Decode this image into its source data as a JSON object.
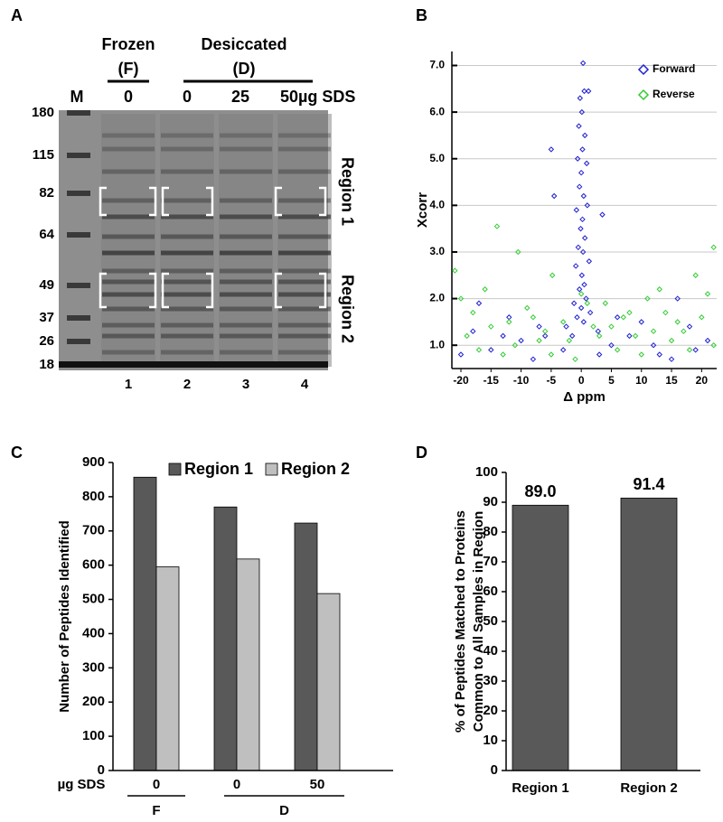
{
  "gel": {
    "panel_label": "A",
    "groups": [
      {
        "label": "Frozen",
        "abbr": "(F)"
      },
      {
        "label": "Desiccated",
        "abbr": "(D)"
      }
    ],
    "column_labels": [
      "M",
      "0",
      "0",
      "25",
      "50µg SDS"
    ],
    "markers": [
      180,
      115,
      82,
      64,
      49,
      37,
      26,
      18
    ],
    "regions": [
      "Region 1",
      "Region 2"
    ],
    "lanes": [
      "1",
      "2",
      "3",
      "4"
    ]
  },
  "chart_data": [
    {
      "type": "scatter",
      "panel_label": "B",
      "xlabel": "Δ ppm",
      "ylabel": "Xcorr",
      "xlim": [
        -21.5,
        22.5
      ],
      "xticks": [
        -20,
        -15,
        -10,
        -5,
        0,
        5,
        10,
        15,
        20
      ],
      "ylim": [
        0.5,
        7.3
      ],
      "yticks": [
        {
          "value": 1.0,
          "label": "1.0"
        },
        {
          "value": 2.0,
          "label": "2.0"
        },
        {
          "value": 3.0,
          "label": "3.0"
        },
        {
          "value": 4.0,
          "label": "4.0"
        },
        {
          "value": 5.0,
          "label": "5.0"
        },
        {
          "value": 6.0,
          "label": "6.0"
        },
        {
          "value": 7.0,
          "label": "7.0"
        }
      ],
      "grid": true,
      "legend": "upper right",
      "series": [
        {
          "name": "Forward",
          "color": "#1f1fd0",
          "x": [
            0.3,
            0.5,
            -0.2,
            1.2,
            0.1,
            -0.4,
            0.6,
            0.2,
            -0.6,
            0.9,
            0.0,
            -0.3,
            0.4,
            1.0,
            -0.8,
            0.2,
            -0.1,
            0.6,
            -0.5,
            0.3,
            1.3,
            -0.9,
            0.1,
            0.5,
            -0.3,
            0.8,
            -1.2,
            0.0,
            1.5,
            -0.7,
            0.4,
            -2.5,
            2.8,
            -5.0,
            -4.5,
            3.5,
            -6,
            -10,
            -15,
            -18,
            -20,
            8,
            12,
            15,
            18,
            21,
            -12,
            10,
            5,
            -8,
            -3,
            3,
            6,
            -17,
            16,
            -13,
            19,
            -7,
            13,
            -1.5
          ],
          "values": [
            7.05,
            6.45,
            6.3,
            6.45,
            6.0,
            5.7,
            5.5,
            5.2,
            5.0,
            4.9,
            4.7,
            4.4,
            4.2,
            4.0,
            3.9,
            3.7,
            3.5,
            3.3,
            3.1,
            3.0,
            2.8,
            2.7,
            2.5,
            2.3,
            2.2,
            2.0,
            1.9,
            1.8,
            1.7,
            1.6,
            1.5,
            1.4,
            1.3,
            5.2,
            4.2,
            3.8,
            1.2,
            1.1,
            0.9,
            1.3,
            0.8,
            1.2,
            1.0,
            0.7,
            1.4,
            1.1,
            1.6,
            1.5,
            1.0,
            0.7,
            0.9,
            0.8,
            1.6,
            1.9,
            2.0,
            1.2,
            0.9,
            1.4,
            0.8,
            1.2
          ]
        },
        {
          "name": "Reverse",
          "color": "#33cc33",
          "x": [
            -14,
            -10.5,
            -4.8,
            22,
            19,
            21,
            -21,
            -20,
            -16,
            -12,
            -9,
            -6,
            -2,
            2,
            4,
            7,
            9,
            11,
            14,
            17,
            20,
            22,
            -19,
            -17,
            -15,
            -11,
            -8,
            -5,
            -1,
            1,
            3,
            6,
            8,
            10,
            12,
            15,
            18,
            -13,
            -3,
            5,
            13,
            -18,
            16,
            -7,
            0
          ],
          "values": [
            3.55,
            3.0,
            2.5,
            3.1,
            2.5,
            2.1,
            2.6,
            2.0,
            2.2,
            1.5,
            1.8,
            1.3,
            1.1,
            1.4,
            1.9,
            1.6,
            1.2,
            2.0,
            1.7,
            1.3,
            1.6,
            1.0,
            1.2,
            0.9,
            1.4,
            1.0,
            1.6,
            0.8,
            0.7,
            1.9,
            1.2,
            0.9,
            1.7,
            0.8,
            1.3,
            1.1,
            0.9,
            0.8,
            1.5,
            1.4,
            2.2,
            1.7,
            1.5,
            1.1,
            2.1
          ]
        }
      ]
    },
    {
      "type": "bar",
      "panel_label": "C",
      "ylabel": "Number of Peptides Identified",
      "categories": [
        "0",
        "0",
        "50"
      ],
      "x_prefix_label": "µg SDS",
      "group_labels": [
        "F",
        "D"
      ],
      "series": [
        {
          "name": "Region 1",
          "color": "#595959",
          "values": [
            857,
            770,
            723
          ]
        },
        {
          "name": "Region 2",
          "color": "#bfbfbf",
          "values": [
            595,
            618,
            517
          ]
        }
      ],
      "ylim": [
        0,
        900
      ],
      "yticks": [
        0,
        100,
        200,
        300,
        400,
        500,
        600,
        700,
        800,
        900
      ],
      "legend": "top"
    },
    {
      "type": "bar",
      "panel_label": "D",
      "ylabel": [
        "% of Peptides Matched to Proteins",
        "Common to All Samples in Region"
      ],
      "categories": [
        "Region 1",
        "Region 2"
      ],
      "values": [
        89.0,
        91.4
      ],
      "value_labels": [
        "89.0",
        "91.4"
      ],
      "color": "#595959",
      "ylim": [
        0,
        100
      ],
      "yticks": [
        0,
        10,
        20,
        30,
        40,
        50,
        60,
        70,
        80,
        90,
        100
      ]
    }
  ]
}
